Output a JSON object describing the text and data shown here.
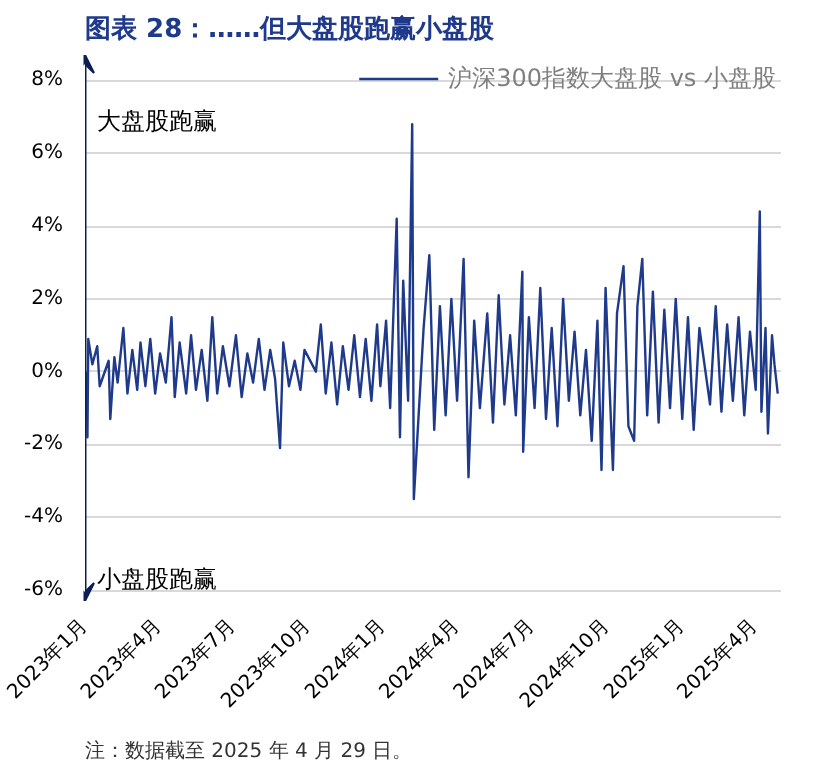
{
  "chart_data": {
    "type": "line",
    "title": "图表 28：……但大盘股跑赢小盘股",
    "annotations": [
      "大盘股跑赢",
      "小盘股跑赢",
      "注：数据截至 2025 年 4 月 29 日。"
    ],
    "xlim": [
      "2023-01-01",
      "2025-05-03"
    ],
    "xticks": [
      {
        "value": "2023-01-01",
        "label": "2023年1月"
      },
      {
        "value": "2023-04-01",
        "label": "2023年4月"
      },
      {
        "value": "2023-07-01",
        "label": "2023年7月"
      },
      {
        "value": "2023-10-01",
        "label": "2023年10月"
      },
      {
        "value": "2024-01-01",
        "label": "2024年1月"
      },
      {
        "value": "2024-04-01",
        "label": "2024年4月"
      },
      {
        "value": "2024-07-01",
        "label": "2024年7月"
      },
      {
        "value": "2024-10-01",
        "label": "2024年10月"
      },
      {
        "value": "2025-01-01",
        "label": "2025年1月"
      },
      {
        "value": "2025-04-01",
        "label": "2025年4月"
      }
    ],
    "ylim": [
      -6.3,
      8.7
    ],
    "yticks": [
      {
        "value": -6,
        "label": "-6%"
      },
      {
        "value": -4,
        "label": "-4%"
      },
      {
        "value": -2,
        "label": "-2%"
      },
      {
        "value": 0,
        "label": "0%"
      },
      {
        "value": 2,
        "label": "2%"
      },
      {
        "value": 4,
        "label": "4%"
      },
      {
        "value": 6,
        "label": "6%"
      },
      {
        "value": 8,
        "label": "8%"
      }
    ],
    "grid": "y",
    "legend": "top right",
    "marker": "none",
    "line_style": "solid",
    "x": [
      "2023-01-03",
      "2023-01-04",
      "2023-01-05",
      "2023-01-10",
      "2023-01-16",
      "2023-01-19",
      "2023-01-30",
      "2023-02-01",
      "2023-02-06",
      "2023-02-10",
      "2023-02-17",
      "2023-02-22",
      "2023-02-28",
      "2023-03-06",
      "2023-03-10",
      "2023-03-16",
      "2023-03-22",
      "2023-03-28",
      "2023-04-03",
      "2023-04-10",
      "2023-04-17",
      "2023-04-21",
      "2023-04-27",
      "2023-05-05",
      "2023-05-11",
      "2023-05-17",
      "2023-05-24",
      "2023-05-31",
      "2023-06-06",
      "2023-06-12",
      "2023-06-19",
      "2023-06-27",
      "2023-07-05",
      "2023-07-12",
      "2023-07-19",
      "2023-07-26",
      "2023-08-02",
      "2023-08-09",
      "2023-08-16",
      "2023-08-22",
      "2023-08-28",
      "2023-09-01",
      "2023-09-08",
      "2023-09-15",
      "2023-09-22",
      "2023-09-27",
      "2023-10-11",
      "2023-10-17",
      "2023-10-23",
      "2023-10-30",
      "2023-11-06",
      "2023-11-13",
      "2023-11-20",
      "2023-11-27",
      "2023-12-04",
      "2023-12-11",
      "2023-12-18",
      "2023-12-25",
      "2023-12-29",
      "2024-01-05",
      "2024-01-10",
      "2024-01-18",
      "2024-01-22",
      "2024-01-26",
      "2024-02-01",
      "2024-02-06",
      "2024-02-08",
      "2024-02-20",
      "2024-02-27",
      "2024-03-04",
      "2024-03-11",
      "2024-03-18",
      "2024-03-25",
      "2024-04-01",
      "2024-04-09",
      "2024-04-15",
      "2024-04-22",
      "2024-04-29",
      "2024-05-08",
      "2024-05-15",
      "2024-05-22",
      "2024-05-29",
      "2024-06-05",
      "2024-06-12",
      "2024-06-20",
      "2024-06-21",
      "2024-06-28",
      "2024-07-05",
      "2024-07-12",
      "2024-07-19",
      "2024-07-26",
      "2024-08-02",
      "2024-08-09",
      "2024-08-16",
      "2024-08-23",
      "2024-08-30",
      "2024-09-06",
      "2024-09-13",
      "2024-09-20",
      "2024-09-25",
      "2024-09-30",
      "2024-10-09",
      "2024-10-14",
      "2024-10-22",
      "2024-10-28",
      "2024-11-04",
      "2024-11-08",
      "2024-11-14",
      "2024-11-20",
      "2024-11-27",
      "2024-12-04",
      "2024-12-11",
      "2024-12-18",
      "2024-12-25",
      "2025-01-02",
      "2025-01-09",
      "2025-01-16",
      "2025-01-23",
      "2025-02-05",
      "2025-02-12",
      "2025-02-19",
      "2025-02-26",
      "2025-03-05",
      "2025-03-12",
      "2025-03-19",
      "2025-03-26",
      "2025-04-02",
      "2025-04-07",
      "2025-04-09",
      "2025-04-14",
      "2025-04-17",
      "2025-04-22",
      "2025-04-25",
      "2025-04-29"
    ],
    "series": [
      {
        "name": "沪深300指数大盘股 vs 小盘股",
        "color": "#1f3a8a",
        "values": [
          0.0,
          -1.8,
          0.9,
          0.2,
          0.7,
          -0.4,
          0.3,
          -1.3,
          0.4,
          -0.3,
          1.2,
          -0.6,
          0.6,
          -0.5,
          0.8,
          -0.4,
          0.9,
          -0.6,
          0.5,
          -0.3,
          1.5,
          -0.7,
          0.8,
          -0.6,
          1.0,
          -0.5,
          0.6,
          -0.8,
          1.5,
          -0.6,
          0.7,
          -0.4,
          1.0,
          -0.7,
          0.5,
          -0.3,
          0.9,
          -0.5,
          0.6,
          -0.2,
          -2.1,
          0.8,
          -0.4,
          0.3,
          -0.5,
          0.6,
          0.0,
          1.3,
          -0.6,
          0.8,
          -0.9,
          0.7,
          -0.5,
          1.0,
          -0.7,
          0.9,
          -0.8,
          1.3,
          -0.4,
          1.4,
          -1.0,
          4.2,
          -1.8,
          2.5,
          -0.8,
          6.8,
          -3.5,
          1.2,
          3.2,
          -1.6,
          1.8,
          -1.2,
          2.0,
          -0.8,
          3.1,
          -2.9,
          1.4,
          -1.0,
          1.6,
          -1.4,
          2.1,
          -0.9,
          1.0,
          -1.2,
          2.75,
          -2.2,
          1.5,
          -1.0,
          2.3,
          -1.3,
          1.2,
          -1.5,
          2.0,
          -0.8,
          1.1,
          -1.2,
          0.6,
          -1.9,
          1.4,
          -2.7,
          2.3,
          -2.7,
          1.6,
          2.9,
          -1.5,
          -1.9,
          1.8,
          3.1,
          -1.2,
          2.2,
          -1.4,
          1.7,
          -1.0,
          2.0,
          -1.3,
          1.5,
          -1.6,
          1.2,
          -0.9,
          1.8,
          -1.1,
          1.3,
          -0.8,
          1.5,
          -1.2,
          1.1,
          -0.5,
          4.4,
          -1.1,
          1.2,
          -1.7,
          1.0,
          0.2,
          -0.6
        ]
      }
    ]
  }
}
